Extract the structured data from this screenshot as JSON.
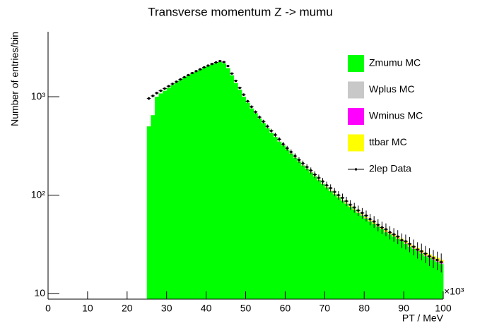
{
  "chart_data": {
    "type": "stacked_histogram",
    "title": "Transverse momentum Z -> mumu",
    "x_label": "PT / MeV",
    "y_label": "Number of entries/bin",
    "x_multiplier": "×10³",
    "log_y": true,
    "legend": "top-right",
    "bins": [
      25,
      26,
      27,
      28,
      29,
      30,
      31,
      32,
      33,
      34,
      35,
      36,
      37,
      38,
      39,
      40,
      41,
      42,
      43,
      44,
      45,
      46,
      47,
      48,
      49,
      50,
      51,
      52,
      53,
      54,
      55,
      56,
      57,
      58,
      59,
      60,
      61,
      62,
      63,
      64,
      65,
      66,
      67,
      68,
      69,
      70,
      71,
      72,
      73,
      74,
      75,
      76,
      77,
      78,
      79,
      80,
      81,
      82,
      83,
      84,
      85,
      86,
      87,
      88,
      89,
      90,
      91,
      92,
      93,
      94,
      95,
      96,
      97,
      98,
      99,
      100
    ],
    "xlim": [
      0,
      100
    ],
    "xticks": [
      0,
      10,
      20,
      30,
      40,
      50,
      60,
      70,
      80,
      90,
      100
    ],
    "ylim": [
      8.8,
      4570
    ],
    "yticks": [
      10,
      {
        "value": 100,
        "label": "10²"
      },
      {
        "value": 1000,
        "label": "10³"
      }
    ],
    "series": [
      {
        "name": "Zmumu MC",
        "color": "#00ff00",
        "values": [
          500,
          650,
          1000,
          1080,
          1150,
          1230,
          1310,
          1390,
          1470,
          1560,
          1640,
          1720,
          1800,
          1880,
          1960,
          2050,
          2130,
          2200,
          2250,
          2180,
          1950,
          1650,
          1380,
          1180,
          1000,
          870,
          760,
          680,
          600,
          540,
          480,
          430,
          390,
          350,
          320,
          290,
          265,
          240,
          220,
          200,
          185,
          170,
          155,
          142,
          130,
          120,
          110,
          102,
          95,
          88,
          82,
          76,
          71,
          66,
          62,
          58,
          54,
          51,
          48,
          45,
          42,
          40,
          38,
          36,
          34,
          32,
          30,
          28.5,
          27,
          25.5,
          24,
          23,
          22,
          21,
          20
        ]
      },
      {
        "name": "Wplus MC",
        "color": "#c8c8c8",
        "values": [
          0.3,
          0.3,
          0.3,
          0.3,
          0.3,
          0.3,
          0.3,
          0.3,
          0.3,
          0.3,
          0.3,
          0.3,
          0.3,
          0.3,
          0.3,
          0.3,
          0.3,
          0.3,
          0.3,
          0.3,
          0.3,
          0.3,
          0.3,
          0.3,
          0.3,
          0.3,
          0.3,
          0.3,
          0.3,
          0.3,
          0.3,
          0.3,
          0.3,
          0.3,
          0.3,
          0.3,
          0.3,
          0.3,
          0.3,
          0.3,
          0.3,
          0.3,
          0.3,
          0.3,
          0.3,
          0.3,
          0.3,
          0.3,
          0.3,
          0.3,
          0.3,
          0.3,
          0.3,
          0.3,
          0.3,
          0.3,
          0.3,
          0.3,
          0.3,
          0.3,
          0.3,
          0.3,
          0.3,
          0.3,
          0.3,
          0.3,
          0.3,
          0.3,
          0.3,
          0.3,
          0.3,
          0.3,
          0.3,
          0.3,
          0.3
        ]
      },
      {
        "name": "Wminus MC",
        "color": "#ff00ff",
        "values": [
          0.3,
          0.3,
          0.3,
          0.3,
          0.3,
          0.3,
          0.3,
          0.3,
          0.3,
          0.3,
          0.3,
          0.3,
          0.3,
          0.3,
          0.3,
          0.3,
          0.3,
          0.3,
          0.3,
          0.3,
          0.3,
          0.3,
          0.3,
          0.3,
          0.3,
          0.3,
          0.3,
          0.3,
          0.3,
          0.3,
          0.3,
          0.3,
          0.3,
          0.3,
          0.3,
          0.3,
          0.3,
          0.3,
          0.3,
          0.3,
          0.3,
          0.3,
          0.3,
          0.3,
          0.3,
          0.3,
          0.3,
          0.3,
          0.3,
          0.3,
          0.3,
          0.3,
          0.3,
          0.3,
          0.3,
          0.3,
          0.3,
          0.3,
          0.3,
          0.3,
          0.3,
          0.3,
          0.3,
          0.3,
          0.3,
          0.3,
          0.3,
          0.3,
          0.3,
          0.3,
          0.3,
          0.3,
          0.3,
          0.3,
          0.3
        ]
      },
      {
        "name": "ttbar MC",
        "color": "#ffff00",
        "values": [
          0.5,
          0.5,
          0.5,
          0.5,
          0.5,
          0.5,
          0.5,
          0.5,
          0.5,
          0.5,
          0.5,
          0.5,
          0.5,
          0.5,
          0.5,
          0.5,
          0.5,
          0.5,
          0.5,
          0.5,
          0.8,
          0.8,
          0.8,
          0.8,
          0.8,
          0.8,
          0.8,
          0.8,
          0.8,
          0.8,
          0.8,
          0.8,
          0.8,
          0.8,
          0.8,
          0.8,
          0.8,
          0.8,
          0.8,
          0.8,
          1,
          1,
          1,
          1,
          1,
          1,
          1,
          1,
          1,
          1,
          1,
          1,
          1,
          1,
          1,
          1,
          1,
          1,
          1,
          1,
          1.5,
          1.5,
          1.5,
          1.5,
          1.5,
          1.5,
          1.5,
          1.5,
          1.5,
          1.5,
          1.5,
          1.5,
          1.5,
          1.5,
          1.5
        ]
      }
    ],
    "data": {
      "name": "2lep Data",
      "color": "#000000",
      "values": [
        960,
        1020,
        1090,
        1150,
        1210,
        1280,
        1350,
        1420,
        1500,
        1580,
        1660,
        1740,
        1820,
        1900,
        1990,
        2070,
        2150,
        2230,
        2300,
        2250,
        2050,
        1720,
        1450,
        1230,
        1050,
        900,
        790,
        700,
        620,
        560,
        500,
        450,
        410,
        370,
        330,
        300,
        275,
        250,
        228,
        210,
        193,
        178,
        162,
        150,
        138,
        126,
        118,
        108,
        100,
        94,
        87,
        80,
        75,
        70,
        66,
        62,
        57,
        54,
        50,
        47,
        45,
        42,
        40,
        38,
        35,
        34,
        32,
        30,
        28,
        27,
        25.5,
        24,
        23,
        22,
        21
      ]
    }
  }
}
